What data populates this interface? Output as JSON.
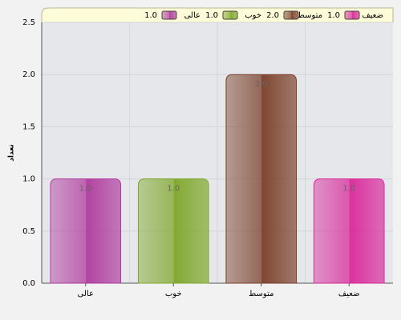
{
  "chart_data": {
    "type": "bar",
    "y_label": "تعداد",
    "categories": [
      "عالی",
      "خوب",
      "متوسط",
      "ضعیف"
    ],
    "values": [
      1,
      1,
      2,
      1
    ],
    "value_labels": [
      "1.0",
      "1.0",
      "2.0",
      "1.0"
    ],
    "colors": [
      "#b03a9e",
      "#7ea628",
      "#7a3e28",
      "#d8289a"
    ],
    "ylim": [
      0,
      2.5
    ],
    "yticks": [
      {
        "value": 0,
        "label": "0.0"
      },
      {
        "value": 0.5,
        "label": "0.5"
      },
      {
        "value": 1,
        "label": "1.0"
      },
      {
        "value": 1.5,
        "label": "1.5"
      },
      {
        "value": 2,
        "label": "2.0"
      },
      {
        "value": 2.5,
        "label": "2.5"
      }
    ],
    "grid": true
  }
}
